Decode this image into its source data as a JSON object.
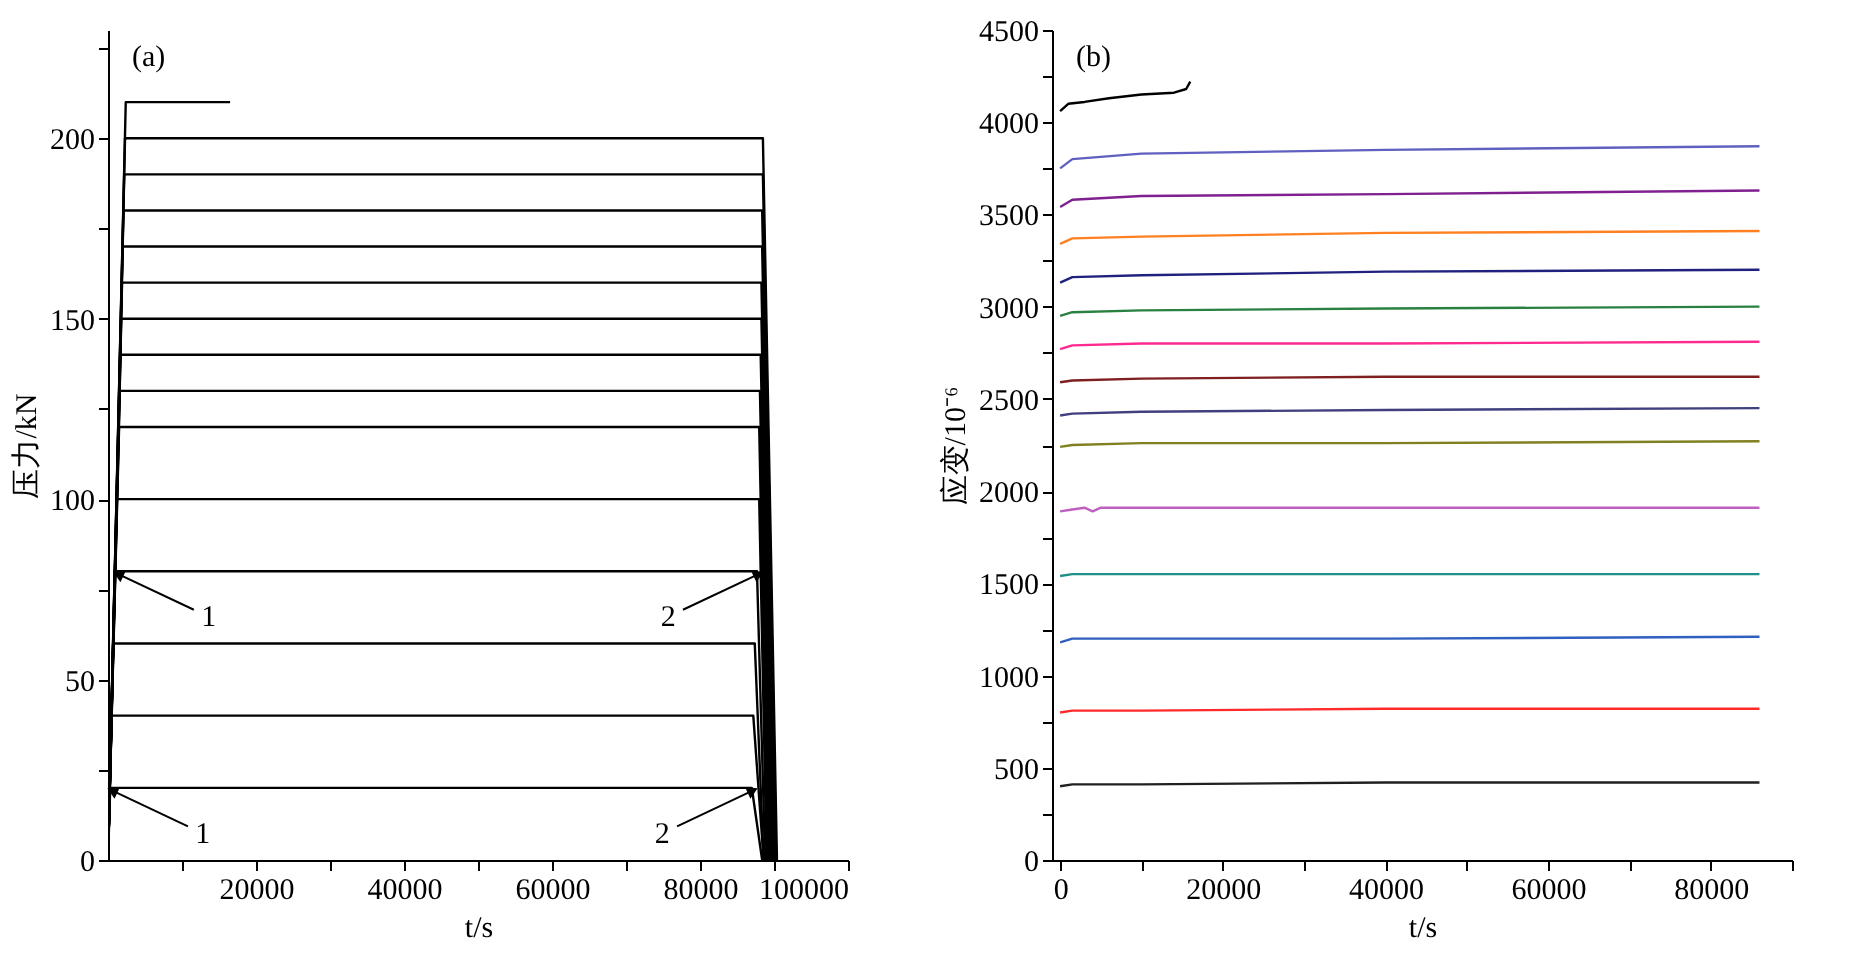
{
  "chart_data": [
    {
      "type": "line",
      "title": "(a)",
      "xlabel": "t/s",
      "ylabel": "压力/kN",
      "xlim": [
        0,
        100000
      ],
      "ylim": [
        0,
        230
      ],
      "xticks": [
        {
          "value": 10000,
          "label": null
        },
        20000,
        {
          "value": 30000,
          "label": null
        },
        40000,
        {
          "value": 50000,
          "label": null
        },
        60000,
        {
          "value": 70000,
          "label": null
        },
        80000,
        {
          "value": 90000,
          "label": null
        },
        100000
      ],
      "yticks": [
        0,
        {
          "value": 25,
          "label": null
        },
        50,
        {
          "value": 75,
          "label": null
        },
        100,
        {
          "value": 125,
          "label": null
        },
        150,
        {
          "value": 175,
          "label": null
        },
        200,
        {
          "value": 225,
          "label": null
        }
      ],
      "series": [
        {
          "color": "#000000",
          "x": [
            0,
            300,
            87000,
            88400
          ],
          "values": [
            0,
            20,
            20,
            0
          ]
        },
        {
          "color": "#000000",
          "x": [
            0,
            500,
            87200,
            88600
          ],
          "values": [
            0,
            40,
            40,
            0
          ]
        },
        {
          "color": "#000000",
          "x": [
            0,
            700,
            87400,
            88600
          ],
          "values": [
            0,
            60,
            60,
            0
          ]
        },
        {
          "color": "#000000",
          "x": [
            0,
            900,
            87700,
            88800
          ],
          "values": [
            0,
            80,
            80,
            0
          ]
        },
        {
          "color": "#000000",
          "x": [
            0,
            1200,
            88000,
            89000
          ],
          "values": [
            0,
            100,
            100,
            0
          ]
        },
        {
          "color": "#000000",
          "x": [
            0,
            1500,
            88000,
            89200
          ],
          "values": [
            0,
            120,
            120,
            0
          ]
        },
        {
          "color": "#000000",
          "x": [
            0,
            1600,
            88100,
            89400
          ],
          "values": [
            0,
            130,
            130,
            0
          ]
        },
        {
          "color": "#000000",
          "x": [
            0,
            1700,
            88200,
            89600
          ],
          "values": [
            0,
            140,
            140,
            0
          ]
        },
        {
          "color": "#000000",
          "x": [
            0,
            1800,
            88300,
            89800
          ],
          "values": [
            0,
            150,
            150,
            0
          ]
        },
        {
          "color": "#000000",
          "x": [
            0,
            1900,
            88300,
            89900
          ],
          "values": [
            0,
            160,
            160,
            0
          ]
        },
        {
          "color": "#000000",
          "x": [
            0,
            2000,
            88400,
            90000
          ],
          "values": [
            0,
            170,
            170,
            0
          ]
        },
        {
          "color": "#000000",
          "x": [
            0,
            2100,
            88400,
            90200
          ],
          "values": [
            0,
            180,
            180,
            0
          ]
        },
        {
          "color": "#000000",
          "x": [
            0,
            2200,
            88500,
            90300
          ],
          "values": [
            0,
            190,
            190,
            0
          ]
        },
        {
          "color": "#000000",
          "x": [
            0,
            2300,
            88500,
            90400
          ],
          "values": [
            0,
            200,
            200,
            0
          ]
        },
        {
          "color": "#000000",
          "x": [
            0,
            2400,
            16500
          ],
          "values": [
            0,
            210,
            210
          ]
        }
      ],
      "annotations": [
        {
          "text": "1",
          "x": 1600,
          "y": 79
        },
        {
          "text": "1",
          "x": 800,
          "y": 19
        },
        {
          "text": "2",
          "x": 87700,
          "y": 79
        },
        {
          "text": "2",
          "x": 86900,
          "y": 19
        }
      ]
    },
    {
      "type": "line",
      "title": "(b)",
      "xlabel": "t/s",
      "ylabel": "应变/10⁻⁶",
      "xlim": [
        -1000,
        90000
      ],
      "ylim": [
        0,
        4500
      ],
      "xticks": [
        0,
        {
          "value": 10000,
          "label": null
        },
        20000,
        {
          "value": 30000,
          "label": null
        },
        40000,
        {
          "value": 50000,
          "label": null
        },
        60000,
        {
          "value": 70000,
          "label": null
        },
        80000,
        {
          "value": 90000,
          "label": null
        }
      ],
      "yticks": [
        0,
        {
          "value": 250,
          "label": null
        },
        500,
        {
          "value": 750,
          "label": null
        },
        1000,
        {
          "value": 1250,
          "label": null
        },
        1500,
        {
          "value": 1750,
          "label": null
        },
        2000,
        {
          "value": 2250,
          "label": null
        },
        2500,
        {
          "value": 2750,
          "label": null
        },
        3000,
        {
          "value": 3250,
          "label": null
        },
        3500,
        {
          "value": 3750,
          "label": null
        },
        4000,
        {
          "value": 4250,
          "label": null
        },
        4500
      ],
      "series": [
        {
          "color": "#202020",
          "x": [
            0,
            1500,
            10000,
            40000,
            86000
          ],
          "values": [
            400,
            410,
            410,
            420,
            420
          ]
        },
        {
          "color": "#ff2a2a",
          "x": [
            0,
            1500,
            10000,
            40000,
            86000
          ],
          "values": [
            800,
            810,
            810,
            820,
            820
          ]
        },
        {
          "color": "#2f5fbf",
          "x": [
            0,
            1500,
            10000,
            40000,
            86000
          ],
          "values": [
            1180,
            1200,
            1200,
            1200,
            1210
          ]
        },
        {
          "color": "#1f8f88",
          "x": [
            0,
            1500,
            10000,
            40000,
            86000
          ],
          "values": [
            1540,
            1550,
            1550,
            1550,
            1550
          ]
        },
        {
          "color": "#bf5fbf",
          "x": [
            0,
            1500,
            3000,
            4000,
            5000,
            10000,
            40000,
            86000
          ],
          "values": [
            1890,
            1900,
            1910,
            1890,
            1910,
            1910,
            1910,
            1910
          ]
        },
        {
          "color": "#808020",
          "x": [
            0,
            1500,
            10000,
            40000,
            86000
          ],
          "values": [
            2240,
            2250,
            2260,
            2260,
            2270
          ]
        },
        {
          "color": "#40407f",
          "x": [
            0,
            1500,
            10000,
            40000,
            86000
          ],
          "values": [
            2410,
            2420,
            2430,
            2440,
            2450
          ]
        },
        {
          "color": "#7f1f1f",
          "x": [
            0,
            1500,
            10000,
            40000,
            86000
          ],
          "values": [
            2590,
            2600,
            2610,
            2620,
            2620
          ]
        },
        {
          "color": "#ff2a90",
          "x": [
            0,
            1500,
            10000,
            40000,
            86000
          ],
          "values": [
            2770,
            2790,
            2800,
            2800,
            2810
          ]
        },
        {
          "color": "#2a8040",
          "x": [
            0,
            1500,
            10000,
            40000,
            86000
          ],
          "values": [
            2950,
            2970,
            2980,
            2990,
            3000
          ]
        },
        {
          "color": "#20207f",
          "x": [
            0,
            1500,
            10000,
            40000,
            86000
          ],
          "values": [
            3130,
            3160,
            3170,
            3190,
            3200
          ]
        },
        {
          "color": "#ff8020",
          "x": [
            0,
            1500,
            10000,
            40000,
            86000
          ],
          "values": [
            3340,
            3370,
            3380,
            3400,
            3410
          ]
        },
        {
          "color": "#802090",
          "x": [
            0,
            1500,
            10000,
            40000,
            86000
          ],
          "values": [
            3540,
            3580,
            3600,
            3610,
            3630
          ]
        },
        {
          "color": "#6060c0",
          "x": [
            0,
            1500,
            10000,
            40000,
            86000
          ],
          "values": [
            3750,
            3800,
            3830,
            3850,
            3870
          ]
        },
        {
          "color": "#000000",
          "x": [
            0,
            1000,
            3000,
            6000,
            10000,
            14000,
            15500,
            16000
          ],
          "values": [
            4060,
            4100,
            4110,
            4130,
            4150,
            4160,
            4180,
            4220
          ]
        }
      ]
    }
  ]
}
